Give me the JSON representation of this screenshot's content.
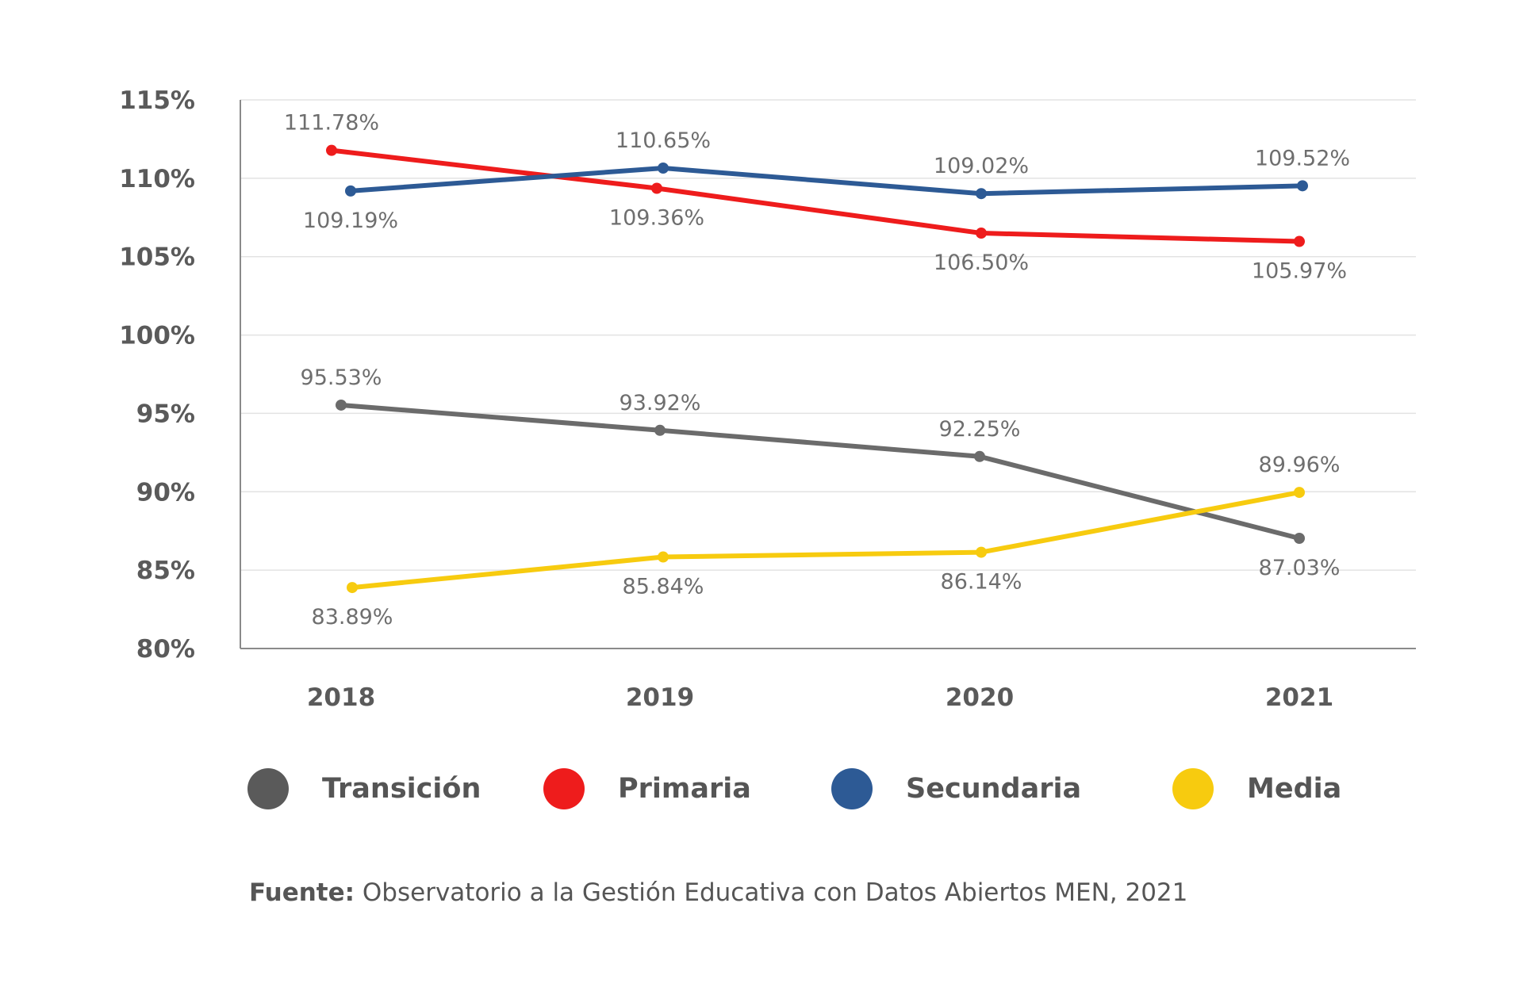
{
  "chart_data": {
    "type": "line",
    "categories": [
      "2018",
      "2019",
      "2020",
      "2021"
    ],
    "ylim": [
      80,
      115
    ],
    "yticks": [
      80,
      85,
      90,
      95,
      100,
      105,
      110,
      115
    ],
    "ytick_labels": [
      "80%",
      "85%",
      "90%",
      "95%",
      "100%",
      "105%",
      "110%",
      "115%"
    ],
    "grid": true,
    "legend_position": "bottom",
    "series": [
      {
        "name": "Transición",
        "color": "#6b6b6b",
        "values": [
          95.53,
          93.92,
          92.25,
          87.03
        ],
        "labels": [
          "95.53%",
          "93.92%",
          "92.25%",
          "87.03%"
        ]
      },
      {
        "name": "Primaria",
        "color": "#ee1c1c",
        "values": [
          111.78,
          109.36,
          106.5,
          105.97
        ],
        "labels": [
          "111.78%",
          "109.36%",
          "106.50%",
          "105.97%"
        ]
      },
      {
        "name": "Secundaria",
        "color": "#2d5a95",
        "values": [
          109.19,
          110.65,
          109.02,
          109.52
        ],
        "labels": [
          "109.19%",
          "110.65%",
          "109.02%",
          "109.52%"
        ]
      },
      {
        "name": "Media",
        "color": "#f7cb0f",
        "values": [
          83.89,
          85.84,
          86.14,
          89.96
        ],
        "labels": [
          "83.89%",
          "85.84%",
          "86.14%",
          "89.96%"
        ]
      }
    ]
  },
  "legend": {
    "items": [
      {
        "label": "Transición",
        "color": "#5a5a5a"
      },
      {
        "label": "Primaria",
        "color": "#ee1c1c"
      },
      {
        "label": "Secundaria",
        "color": "#2d5a95"
      },
      {
        "label": "Media",
        "color": "#f7cb0f"
      }
    ]
  },
  "source": {
    "prefix": "Fuente:",
    "text": " Observatorio a la Gestión Educativa con Datos Abiertos MEN, 2021"
  }
}
